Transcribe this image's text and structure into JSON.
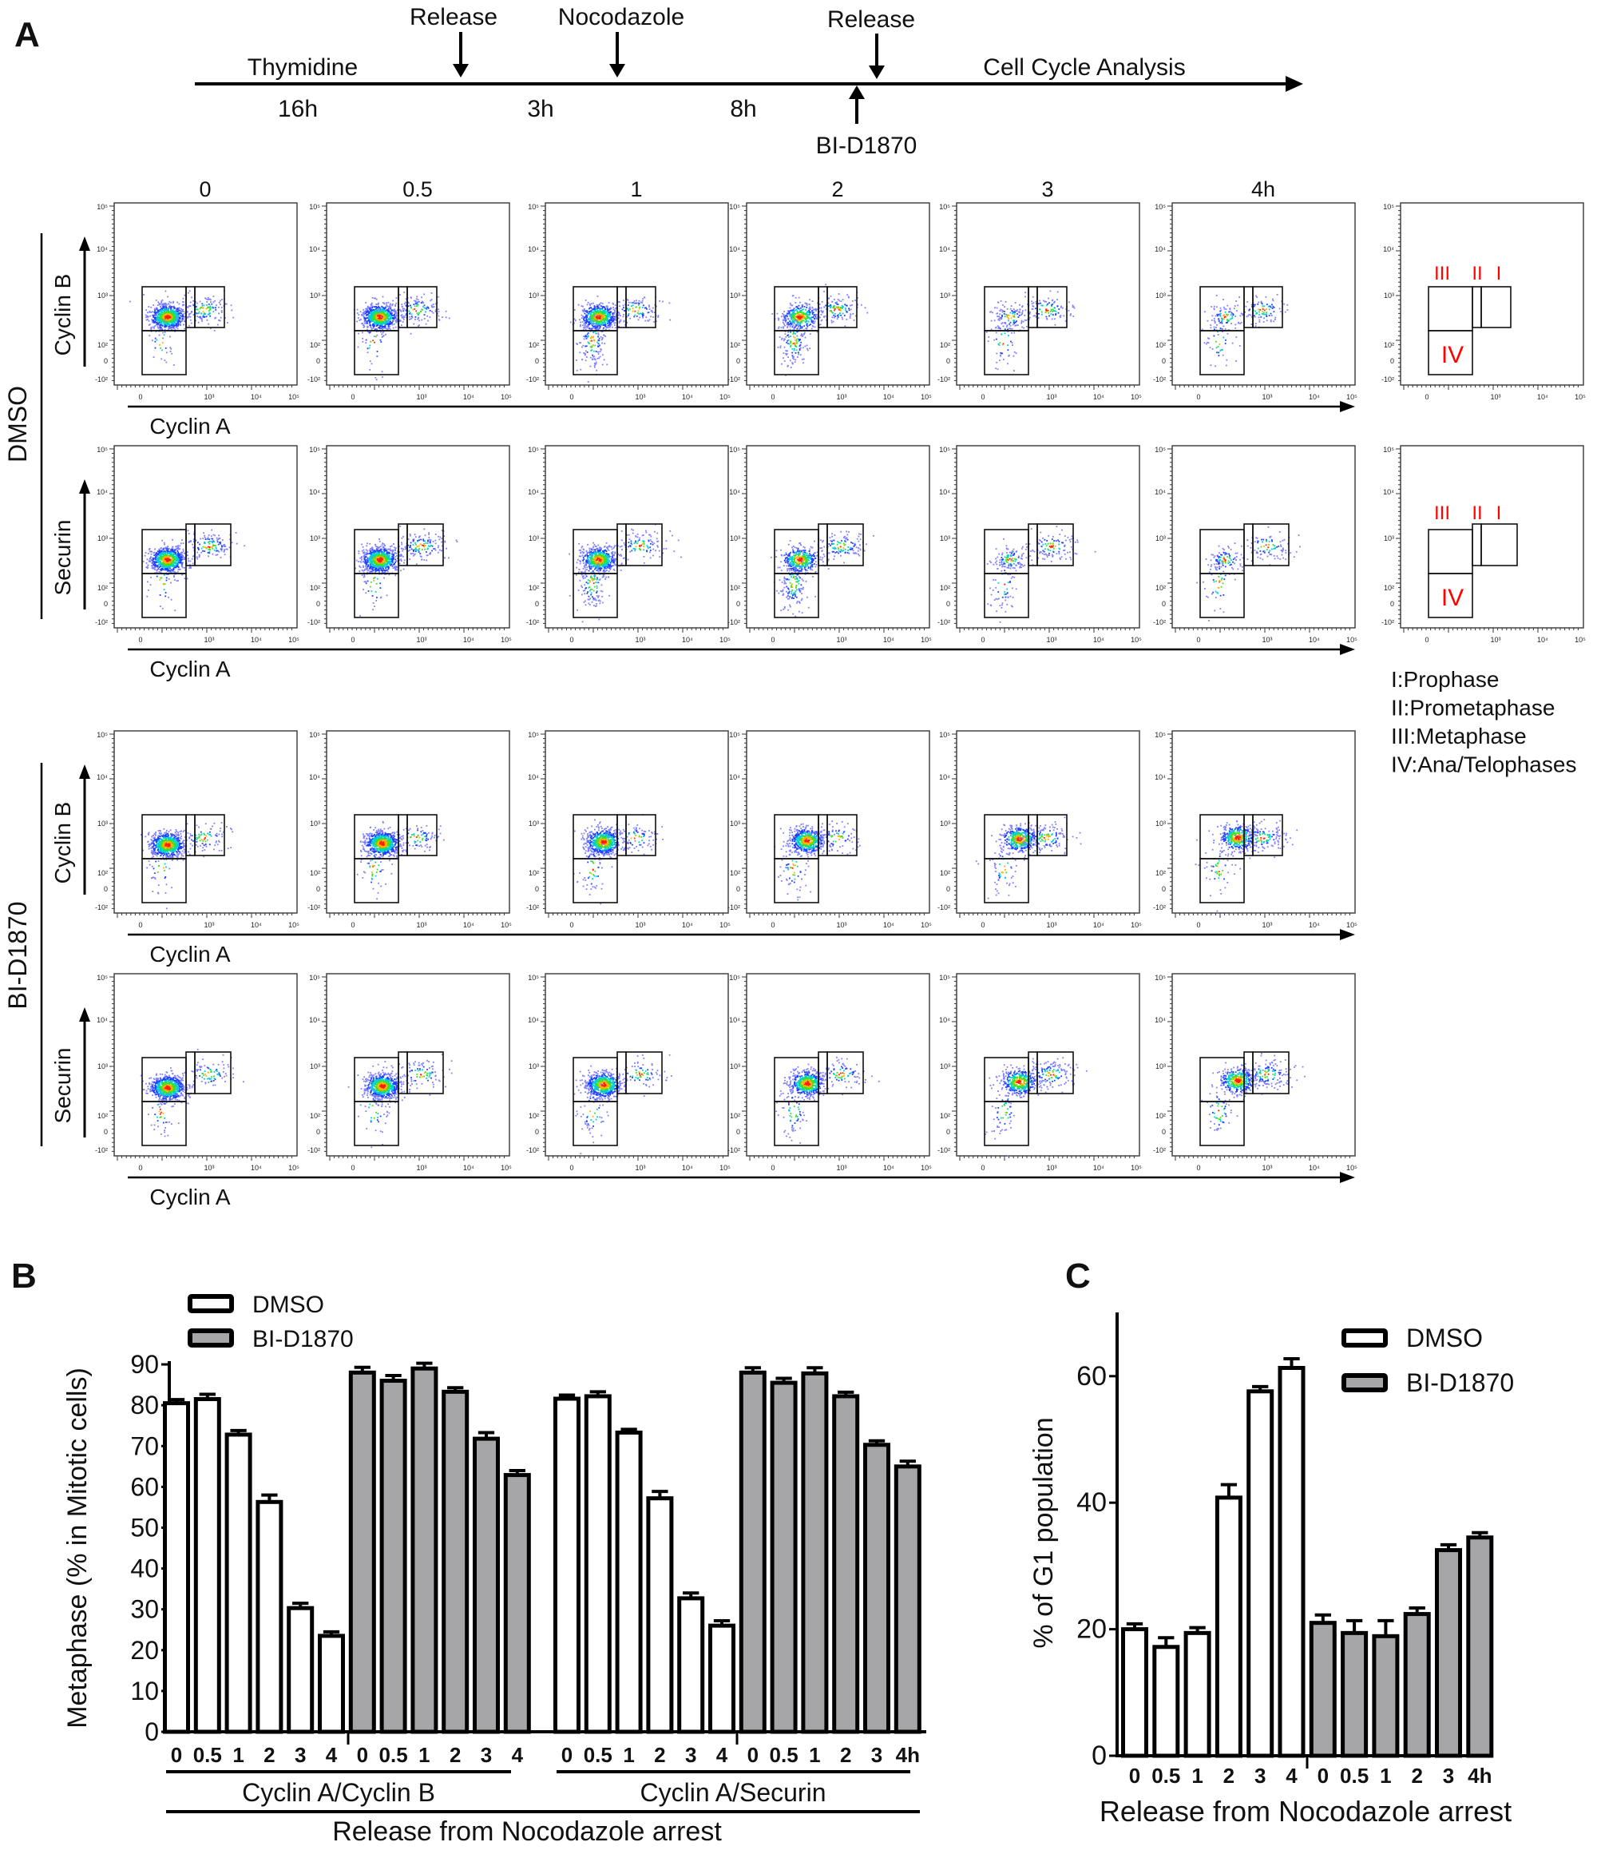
{
  "panel_labels": {
    "a": "A",
    "b": "B",
    "c": "C"
  },
  "timeline": {
    "thymidine": "Thymidine",
    "release1": "Release",
    "nocodazole": "Nocodazole",
    "release2": "Release",
    "analysis": "Cell Cycle Analysis",
    "t1": "16h",
    "t2": "3h",
    "t3": "8h",
    "inhibitor": "BI-D1870"
  },
  "flow": {
    "columns": [
      "0",
      "0.5",
      "1",
      "2",
      "3",
      "4h"
    ],
    "groups": [
      "DMSO",
      "BI-D1870"
    ],
    "rows": [
      {
        "ylabel": "Cyclin B",
        "xlabel": "Cyclin A"
      },
      {
        "ylabel": "Securin",
        "xlabel": "Cyclin A"
      },
      {
        "ylabel": "Cyclin B",
        "xlabel": "Cyclin A"
      },
      {
        "ylabel": "Securin",
        "xlabel": "Cyclin A"
      }
    ],
    "y_ticks": [
      "10⁵",
      "10⁴",
      "10³",
      "10²",
      "0",
      "-10²"
    ],
    "x_ticks": [
      "0",
      "10³",
      "10⁴",
      "10⁵"
    ],
    "gate_labels": {
      "I": "I",
      "II": "II",
      "III": "III",
      "IV": "IV"
    },
    "gate_label_color": "#ff0000",
    "phase_legend": [
      "I:Prophase",
      "II:Prometaphase",
      "III:Metaphase",
      "IV:Ana/Telophases"
    ]
  },
  "chart_data": [
    {
      "type": "bar",
      "panel": "B",
      "ylabel": "Metaphase (% in Mitotic cells)",
      "xlabel": "Release from Nocodazole arrest",
      "ylim": [
        0,
        90
      ],
      "yticks": [
        0,
        10,
        20,
        30,
        40,
        50,
        60,
        70,
        80,
        90
      ],
      "groups": [
        "Cyclin A/Cyclin B",
        "Cyclin A/Securin"
      ],
      "categories": [
        "0",
        "0.5",
        "1",
        "2",
        "3",
        "4"
      ],
      "last_category_label": "4h",
      "legend": "top-left",
      "series": [
        {
          "name": "DMSO",
          "color": "#ffffff",
          "values": [
            [
              80.5,
              81.5,
              72.8,
              56.3,
              30.3,
              23.5
            ],
            [
              81.6,
              82.2,
              73.3,
              57.2,
              32.7,
              26.0
            ]
          ],
          "errors": [
            [
              0.5,
              0.8,
              0.6,
              1.3,
              0.8,
              0.6
            ],
            [
              0.5,
              0.7,
              0.4,
              1.3,
              0.9,
              0.8
            ]
          ]
        },
        {
          "name": "BI-D1870",
          "color": "#a6a6a8",
          "values": [
            [
              88.0,
              86.0,
              89.0,
              83.3,
              71.8,
              62.9
            ],
            [
              88.0,
              85.5,
              87.8,
              82.2,
              70.3,
              65.0
            ]
          ],
          "errors": [
            [
              0.9,
              0.9,
              0.9,
              0.6,
              1.1,
              0.7
            ],
            [
              0.8,
              0.7,
              1.0,
              0.6,
              0.6,
              0.9
            ]
          ]
        }
      ]
    },
    {
      "type": "bar",
      "panel": "C",
      "ylabel": "% of G1 population",
      "xlabel": "Release from Nocodazole arrest",
      "ylim": [
        0,
        70
      ],
      "yticks": [
        0,
        20,
        40,
        60
      ],
      "categories": [
        "0",
        "0.5",
        "1",
        "2",
        "3",
        "4"
      ],
      "last_category_label": "4h",
      "legend": "top-right",
      "series": [
        {
          "name": "DMSO",
          "color": "#ffffff",
          "values": [
            20.0,
            17.2,
            19.4,
            40.8,
            57.6,
            61.3
          ],
          "errors": [
            0.6,
            1.2,
            0.6,
            1.8,
            0.5,
            1.2
          ]
        },
        {
          "name": "BI-D1870",
          "color": "#a6a6a8",
          "values": [
            21.0,
            19.4,
            18.9,
            22.4,
            32.5,
            34.5
          ],
          "errors": [
            1.0,
            1.7,
            2.2,
            0.7,
            0.6,
            0.5
          ]
        }
      ]
    }
  ]
}
